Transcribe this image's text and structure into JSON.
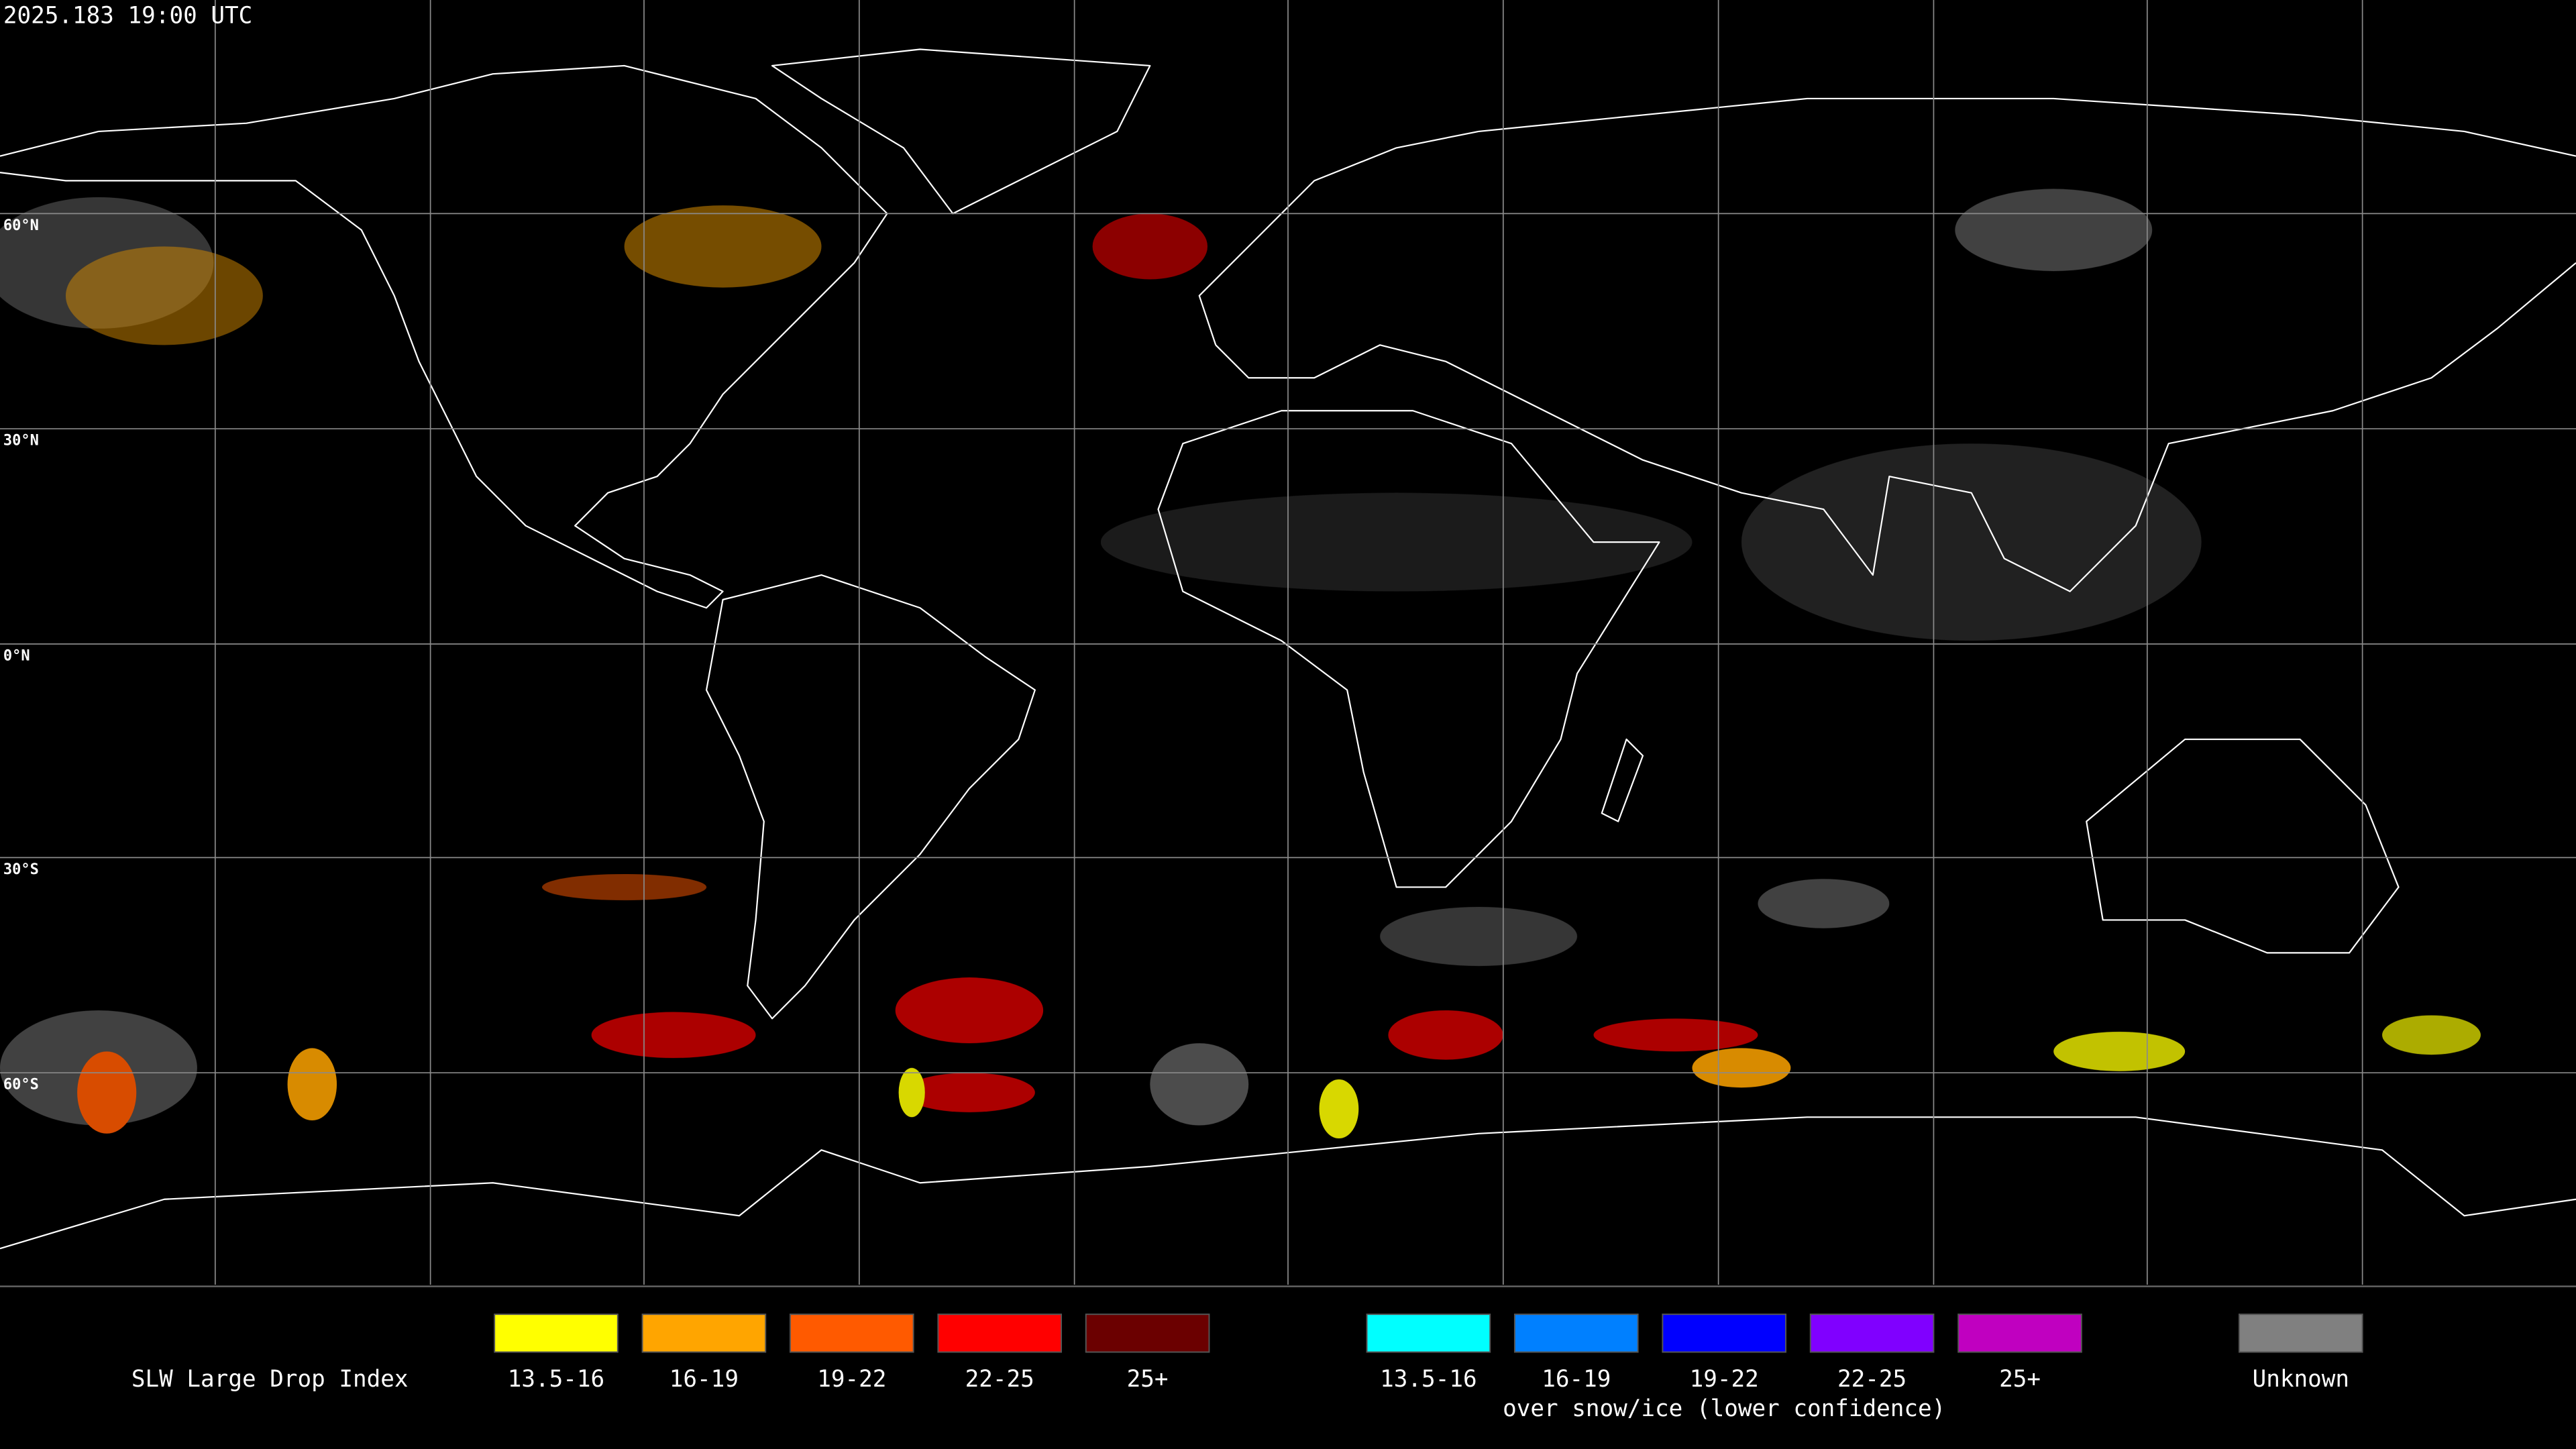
{
  "header": {
    "timestamp": "2025.183 19:00 UTC"
  },
  "map": {
    "latitude_labels": [
      "60°N",
      "30°N",
      "0°N",
      "30°S",
      "60°S"
    ]
  },
  "legend": {
    "title": "SLW Large Drop Index",
    "groups": [
      {
        "items": [
          {
            "label": "13.5-16",
            "color": "#ffff00"
          },
          {
            "label": "16-19",
            "color": "#ffa500"
          },
          {
            "label": "19-22",
            "color": "#ff5a00"
          },
          {
            "label": "22-25",
            "color": "#ff0000"
          },
          {
            "label": "25+",
            "color": "#6b0000"
          }
        ]
      },
      {
        "note": "over snow/ice (lower confidence)",
        "items": [
          {
            "label": "13.5-16",
            "color": "#00ffff"
          },
          {
            "label": "16-19",
            "color": "#0080ff"
          },
          {
            "label": "19-22",
            "color": "#0000ff"
          },
          {
            "label": "22-25",
            "color": "#8000ff"
          },
          {
            "label": "25+",
            "color": "#c000c0"
          }
        ]
      },
      {
        "items": [
          {
            "label": "Unknown",
            "color": "#808080"
          }
        ]
      }
    ]
  }
}
